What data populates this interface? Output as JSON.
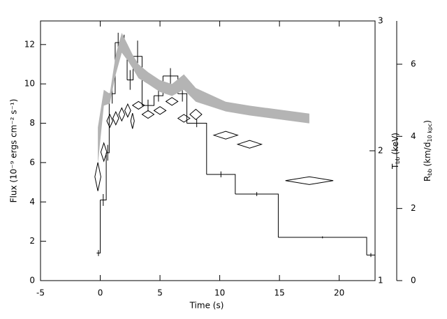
{
  "chart_data": {
    "type": "combo",
    "xlabel": "Time (s)",
    "ylabel": "Flux (10⁻⁹ ergs cm⁻² s⁻¹)",
    "y2label": {
      "symbol": "T",
      "subscript": "bb",
      "unit": "(keV)"
    },
    "y3label": {
      "symbol": "R",
      "subscript": "bb",
      "unit_open": "(km/d",
      "unit_subscript": "10 kpc",
      "unit_close": ")"
    },
    "xlim": [
      -5,
      23
    ],
    "xticks": [
      -5,
      0,
      5,
      10,
      15,
      20
    ],
    "ylim": [
      0,
      13.2
    ],
    "yticks": [
      0,
      2,
      4,
      6,
      8,
      10,
      12
    ],
    "y2lim": [
      1,
      3
    ],
    "y2ticks": [
      1,
      2,
      3
    ],
    "y3lim": [
      0,
      7.2
    ],
    "y3ticks": [
      0,
      2,
      4,
      6
    ],
    "series": [
      {
        "type": "step",
        "axis": "y",
        "color": "#000000",
        "bins": [
          -0.3,
          0,
          0.5,
          0.75,
          1.25,
          1.75,
          2.25,
          2.75,
          3.5,
          4.5,
          5.25,
          6.5,
          7.25,
          8.9,
          11.3,
          14.9,
          22.3,
          23
        ],
        "values": [
          1.4,
          4.1,
          6.5,
          9.5,
          12.1,
          12.0,
          10.2,
          11.4,
          8.9,
          9.4,
          10.4,
          9.5,
          8.0,
          5.4,
          4.4,
          2.2,
          1.3
        ],
        "errors": [
          0.15,
          0.3,
          0.4,
          0.5,
          0.5,
          0.5,
          0.5,
          0.8,
          0.3,
          0.3,
          0.4,
          0.4,
          0.2,
          0.15,
          0.1,
          0.05,
          0.1
        ]
      },
      {
        "type": "band",
        "axis": "y3",
        "color": "#b4b4b4",
        "x": [
          -0.2,
          0.3,
          0.8,
          1.3,
          1.8,
          2.3,
          2.7,
          3.2,
          4,
          5,
          6,
          7,
          8,
          10.5,
          12.5,
          17.5
        ],
        "lower": [
          3.22,
          4.85,
          4.91,
          5.72,
          6.32,
          6.1,
          5.89,
          5.61,
          5.45,
          5.23,
          5.12,
          5.29,
          4.96,
          4.69,
          4.58,
          4.36
        ],
        "upper": [
          4.25,
          5.29,
          5.18,
          6.27,
          6.87,
          6.54,
          6.27,
          6.0,
          5.78,
          5.56,
          5.45,
          5.72,
          5.34,
          4.96,
          4.85,
          4.63
        ]
      },
      {
        "type": "diamond",
        "axis": "y2",
        "color": "#000000",
        "x": [
          -0.2,
          0.3,
          0.8,
          1.3,
          1.8,
          2.3,
          2.7,
          3.2,
          4,
          5,
          6,
          7,
          8,
          10.5,
          12.5,
          17.5
        ],
        "xerr": [
          0.25,
          0.25,
          0.25,
          0.25,
          0.25,
          0.25,
          0.15,
          0.5,
          0.5,
          0.5,
          0.5,
          0.5,
          0.5,
          1.0,
          1.0,
          2.0
        ],
        "values": [
          1.8,
          1.99,
          2.23,
          2.25,
          2.28,
          2.31,
          2.23,
          2.35,
          2.28,
          2.31,
          2.38,
          2.25,
          2.28,
          2.12,
          2.05,
          1.77
        ],
        "errors": [
          0.11,
          0.07,
          0.05,
          0.05,
          0.05,
          0.05,
          0.06,
          0.03,
          0.03,
          0.03,
          0.03,
          0.03,
          0.04,
          0.03,
          0.03,
          0.03
        ]
      }
    ]
  }
}
